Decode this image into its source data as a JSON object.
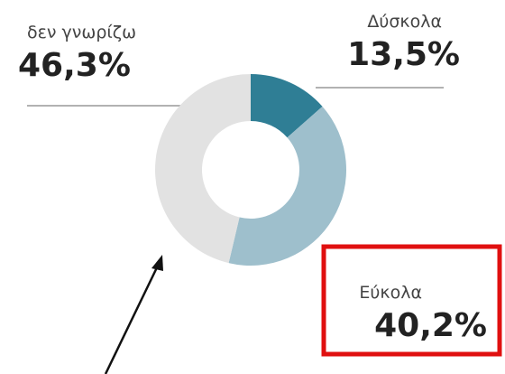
{
  "chart_data": {
    "type": "donut",
    "categories": [
      "Δύσκολα",
      "Εύκολα",
      "δεν γνωρίζω"
    ],
    "values": [
      13.5,
      40.2,
      46.3
    ],
    "value_labels": [
      "13,5%",
      "40,2%",
      "46,3%"
    ],
    "colors": [
      "#2f7e95",
      "#9ebfcc",
      "#e2e2e2"
    ]
  }
}
